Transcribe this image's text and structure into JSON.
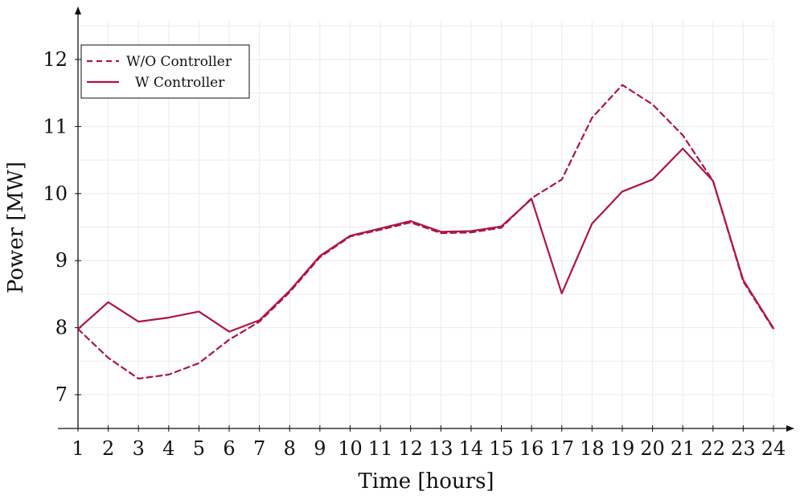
{
  "chart_data": {
    "type": "line",
    "title": "",
    "xlabel": "Time [hours]",
    "ylabel": "Power [MW]",
    "x": [
      1,
      2,
      3,
      4,
      5,
      6,
      7,
      8,
      9,
      10,
      11,
      12,
      13,
      14,
      15,
      16,
      17,
      18,
      19,
      20,
      21,
      22,
      23,
      24
    ],
    "xlim": [
      1,
      24
    ],
    "ylim": [
      6.5,
      12.5
    ],
    "yticks": [
      7,
      8,
      9,
      10,
      11,
      12
    ],
    "grid": true,
    "legend_position": "top-left",
    "series": [
      {
        "name": "W/O Controller",
        "style": "dashed",
        "color": "#b0124a",
        "values": [
          7.98,
          7.55,
          7.24,
          7.3,
          7.47,
          7.82,
          8.09,
          8.53,
          9.05,
          9.36,
          9.46,
          9.57,
          9.41,
          9.42,
          9.49,
          9.93,
          10.21,
          11.13,
          11.62,
          11.33,
          10.87,
          10.19,
          8.69,
          7.98
        ]
      },
      {
        "name": "W Controller",
        "style": "solid",
        "color": "#b0124a",
        "values": [
          7.98,
          8.38,
          8.09,
          8.15,
          8.24,
          7.94,
          8.11,
          8.55,
          9.07,
          9.37,
          9.48,
          9.59,
          9.43,
          9.44,
          9.51,
          9.92,
          8.51,
          9.55,
          10.03,
          10.21,
          10.67,
          10.19,
          8.71,
          7.99
        ]
      }
    ]
  }
}
